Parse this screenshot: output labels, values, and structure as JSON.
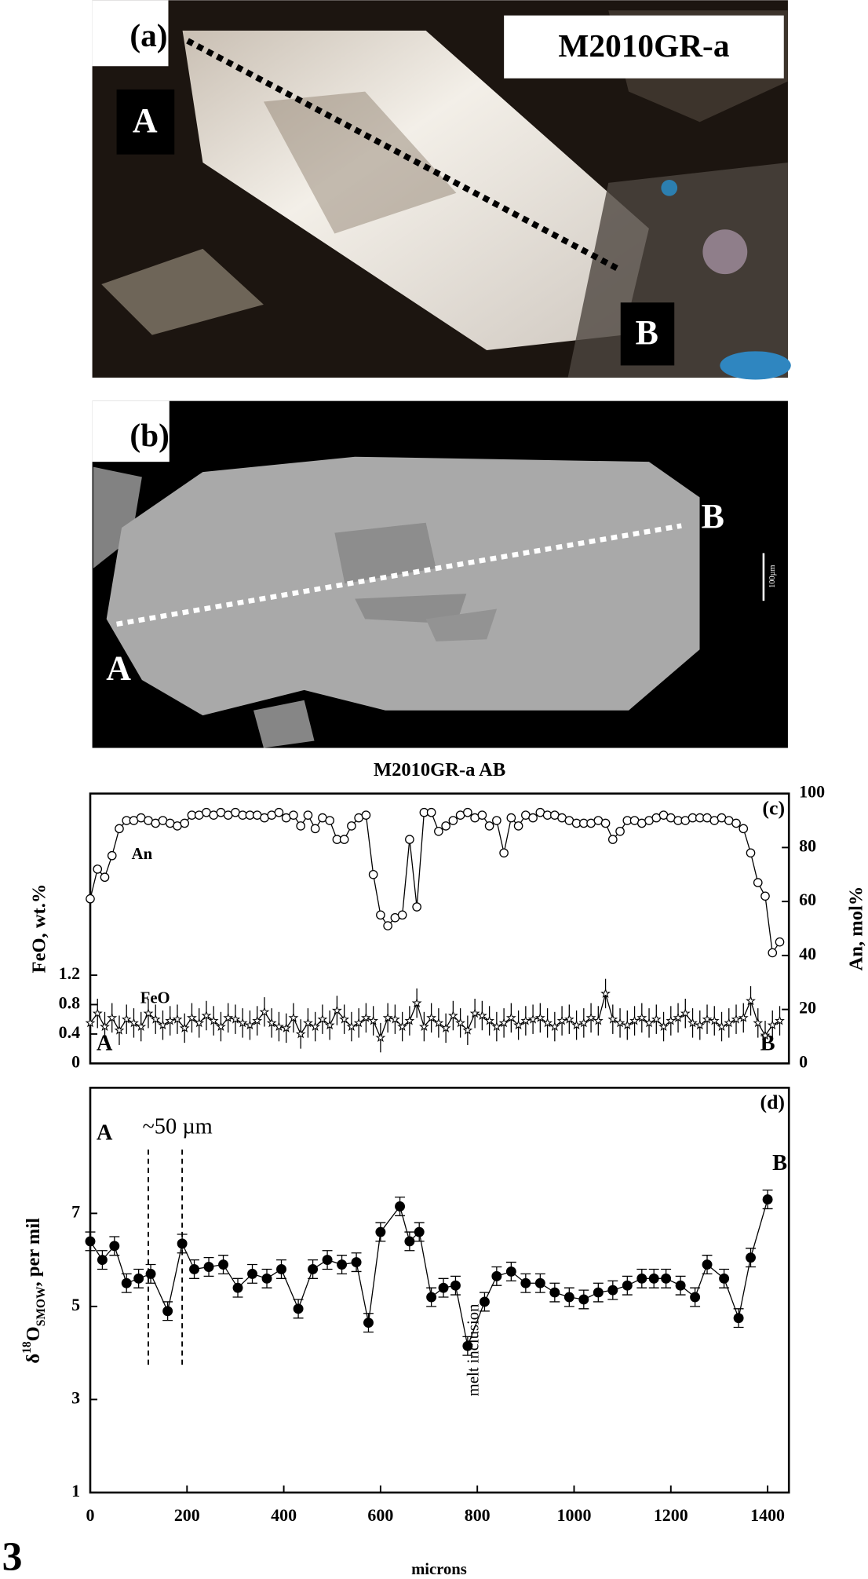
{
  "panels": {
    "a": {
      "label": "(a)",
      "sample": "M2010GR-a",
      "start": "A",
      "end": "B"
    },
    "b": {
      "label": "(b)",
      "start": "A",
      "end": "B",
      "scale": "100µm"
    }
  },
  "figure_number": "3",
  "chart_data": [
    {
      "type": "line",
      "title": "M2010GR-a AB",
      "panel_label": "(c)",
      "ylabel": "FeO, wt.%",
      "y2label": "An, mol%",
      "xlim": [
        0,
        1444
      ],
      "ylim": [
        0,
        3.67
      ],
      "yticks": [
        0,
        0.4,
        0.8,
        1.2
      ],
      "y2lim": [
        0,
        100
      ],
      "y2ticks": [
        0,
        20,
        40,
        60,
        80,
        100
      ],
      "x": [
        0,
        15,
        30,
        45,
        60,
        75,
        90,
        105,
        120,
        135,
        150,
        165,
        180,
        195,
        210,
        225,
        240,
        255,
        270,
        285,
        300,
        315,
        330,
        345,
        360,
        375,
        390,
        405,
        420,
        435,
        450,
        465,
        480,
        495,
        510,
        525,
        540,
        555,
        570,
        585,
        600,
        615,
        630,
        645,
        660,
        675,
        690,
        705,
        720,
        735,
        750,
        765,
        780,
        795,
        810,
        825,
        840,
        855,
        870,
        885,
        900,
        915,
        930,
        945,
        960,
        975,
        990,
        1005,
        1020,
        1035,
        1050,
        1065,
        1080,
        1095,
        1110,
        1125,
        1140,
        1155,
        1170,
        1185,
        1200,
        1215,
        1230,
        1245,
        1260,
        1275,
        1290,
        1305,
        1320,
        1335,
        1350,
        1365,
        1380,
        1395,
        1410,
        1425
      ],
      "series": [
        {
          "name": "An",
          "color": "#000000",
          "marker": "open-circle",
          "axis": "y2",
          "values": [
            61,
            72,
            69,
            77,
            87,
            90,
            90,
            91,
            90,
            89,
            90,
            89,
            88,
            89,
            92,
            92,
            93,
            92,
            93,
            92,
            93,
            92,
            92,
            92,
            91,
            92,
            93,
            91,
            92,
            88,
            92,
            87,
            91,
            90,
            83,
            83,
            88,
            91,
            92,
            70,
            55,
            51,
            54,
            55,
            83,
            58,
            93,
            93,
            86,
            88,
            90,
            92,
            93,
            91,
            92,
            88,
            90,
            78,
            91,
            88,
            92,
            91,
            93,
            92,
            92,
            91,
            90,
            89,
            89,
            89,
            90,
            89,
            83,
            86,
            90,
            90,
            89,
            90,
            91,
            92,
            91,
            90,
            90,
            91,
            91,
            91,
            90,
            91,
            90,
            89,
            87,
            78,
            67,
            62,
            41,
            45
          ]
        },
        {
          "name": "FeO",
          "color": "#000000",
          "marker": "star",
          "error": 0.2,
          "values": [
            0.55,
            0.68,
            0.5,
            0.62,
            0.45,
            0.6,
            0.55,
            0.5,
            0.68,
            0.6,
            0.52,
            0.58,
            0.6,
            0.48,
            0.62,
            0.55,
            0.65,
            0.58,
            0.5,
            0.62,
            0.6,
            0.55,
            0.52,
            0.58,
            0.7,
            0.55,
            0.5,
            0.48,
            0.62,
            0.4,
            0.55,
            0.5,
            0.6,
            0.52,
            0.72,
            0.6,
            0.5,
            0.55,
            0.62,
            0.58,
            0.35,
            0.62,
            0.6,
            0.5,
            0.58,
            0.82,
            0.5,
            0.62,
            0.55,
            0.48,
            0.65,
            0.55,
            0.45,
            0.68,
            0.65,
            0.58,
            0.5,
            0.55,
            0.62,
            0.52,
            0.58,
            0.6,
            0.62,
            0.55,
            0.5,
            0.58,
            0.6,
            0.52,
            0.55,
            0.62,
            0.58,
            0.95,
            0.6,
            0.55,
            0.52,
            0.58,
            0.62,
            0.55,
            0.6,
            0.5,
            0.58,
            0.62,
            0.68,
            0.55,
            0.52,
            0.6,
            0.58,
            0.5,
            0.55,
            0.6,
            0.62,
            0.85,
            0.55,
            0.38,
            0.52,
            0.58
          ]
        }
      ],
      "start_label": "A",
      "end_label": "B"
    },
    {
      "type": "line",
      "panel_label": "(d)",
      "ylabel": [
        "δ",
        "18",
        "O",
        "SMOW",
        ", per mil"
      ],
      "xlabel": "microns",
      "xlim": [
        0,
        1444
      ],
      "xticks": [
        0,
        200,
        400,
        600,
        800,
        1000,
        1200,
        1400
      ],
      "ylim": [
        1,
        9.7
      ],
      "yticks": [
        1,
        3,
        5,
        7
      ],
      "x": [
        0,
        25,
        50,
        75,
        100,
        125,
        160,
        190,
        215,
        245,
        275,
        305,
        335,
        365,
        395,
        430,
        460,
        490,
        520,
        550,
        575,
        600,
        640,
        660,
        680,
        705,
        730,
        755,
        780,
        815,
        840,
        870,
        900,
        930,
        960,
        990,
        1020,
        1050,
        1080,
        1110,
        1140,
        1165,
        1190,
        1220,
        1250,
        1275,
        1310,
        1340,
        1365,
        1400
      ],
      "series": [
        {
          "color": "#000000",
          "marker": "filled-circle",
          "error": 0.2,
          "values": [
            6.4,
            6.0,
            6.3,
            5.5,
            5.6,
            5.7,
            4.9,
            6.35,
            5.8,
            5.85,
            5.9,
            5.4,
            5.7,
            5.6,
            5.8,
            4.95,
            5.8,
            6.0,
            5.9,
            5.95,
            4.65,
            6.6,
            7.15,
            6.4,
            6.6,
            5.2,
            5.4,
            5.45,
            4.15,
            5.1,
            5.65,
            5.75,
            5.5,
            5.5,
            5.3,
            5.2,
            5.15,
            5.3,
            5.35,
            5.45,
            5.6,
            5.6,
            5.6,
            5.45,
            5.2,
            5.9,
            5.6,
            4.75,
            6.05,
            7.3
          ]
        }
      ],
      "start_label": "A",
      "end_label": "B",
      "width_note": "~50 µm",
      "width_bracket": [
        120,
        190
      ],
      "inclusion_note": "melt inclusion"
    }
  ]
}
